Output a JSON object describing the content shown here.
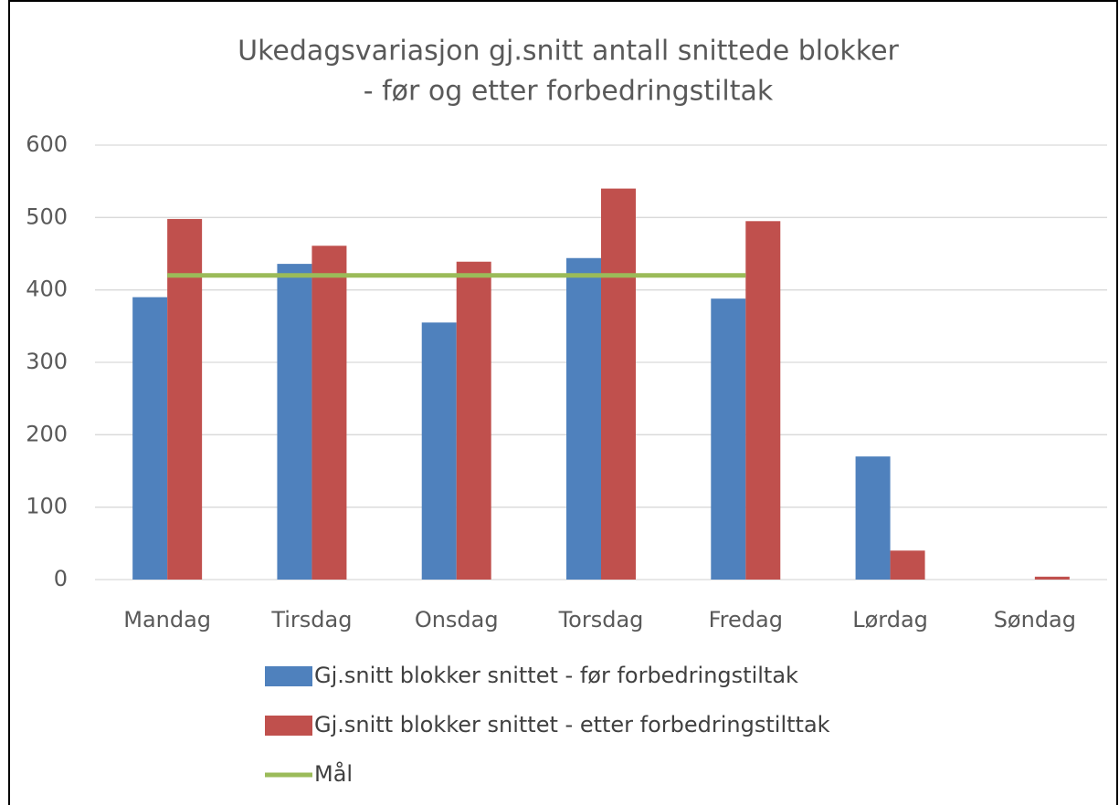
{
  "chart_data": {
    "type": "bar",
    "title": [
      "Ukedagsvariasjon gj.snitt antall snittede blokker",
      "- før og etter forbedringstiltak"
    ],
    "categories": [
      "Mandag",
      "Tirsdag",
      "Onsdag",
      "Torsdag",
      "Fredag",
      "Lørdag",
      "Søndag"
    ],
    "series": [
      {
        "name": "Gj.snitt blokker snittet - før forbedringstiltak",
        "type": "bar",
        "color": "#4f81bd",
        "values": [
          390,
          436,
          355,
          444,
          388,
          170,
          0
        ]
      },
      {
        "name": "Gj.snitt blokker snittet - etter forbedringstilttak",
        "type": "bar",
        "color": "#c0504d",
        "values": [
          498,
          461,
          439,
          540,
          495,
          40,
          4
        ]
      },
      {
        "name": "Mål",
        "type": "line",
        "color": "#9bbb59",
        "values": [
          420,
          420,
          420,
          420,
          420,
          null,
          null
        ]
      }
    ],
    "ylim": [
      0,
      600
    ],
    "yticks": [
      0,
      100,
      200,
      300,
      400,
      500,
      600
    ],
    "grid": true,
    "legend": "bottom"
  }
}
